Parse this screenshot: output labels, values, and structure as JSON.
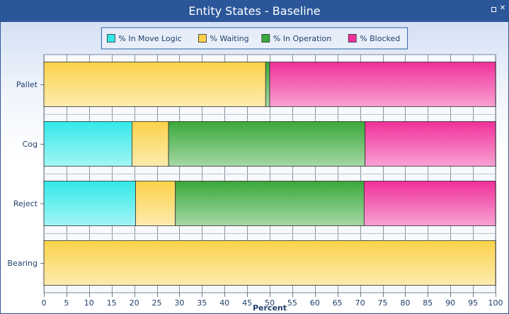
{
  "window": {
    "title": "Entity States - Baseline"
  },
  "chart_data": {
    "type": "bar",
    "orientation": "horizontal",
    "stacked": true,
    "categories": [
      "Pallet",
      "Cog",
      "Reject",
      "Bearing"
    ],
    "series": [
      {
        "name": "% In Move Logic",
        "color": "#33e8e8",
        "values": [
          0,
          19.5,
          20.3,
          0
        ]
      },
      {
        "name": "% Waiting",
        "color": "#fbd24a",
        "values": [
          49.1,
          8.1,
          8.8,
          100
        ]
      },
      {
        "name": "% In Operation",
        "color": "#3aa83a",
        "values": [
          0.9,
          43.5,
          41.8,
          0
        ]
      },
      {
        "name": "% Blocked",
        "color": "#f0309a",
        "values": [
          50.0,
          28.9,
          29.1,
          0
        ]
      }
    ],
    "xlabel": "Percent",
    "ylabel": "",
    "xlim": [
      0,
      100
    ],
    "xticks": [
      "0",
      "5",
      "10",
      "15",
      "20",
      "25",
      "30",
      "35",
      "40",
      "45",
      "50",
      "55",
      "60",
      "65",
      "70",
      "75",
      "80",
      "85",
      "90",
      "95",
      "100"
    ],
    "grid": true,
    "legend_position": "top-center"
  }
}
